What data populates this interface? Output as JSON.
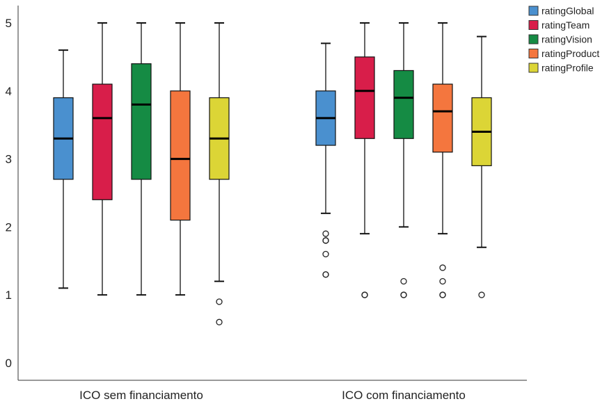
{
  "chart_data": {
    "type": "boxplot",
    "title": "",
    "xlabel": "",
    "ylabel": "",
    "ylim": [
      0,
      5
    ],
    "yticks": [
      0,
      1,
      2,
      3,
      4,
      5
    ],
    "grid": false,
    "legend_position": "top-right",
    "categories": [
      "ICO sem financiamento",
      "ICO com financiamento"
    ],
    "series": [
      {
        "name": "ratingGlobal",
        "color": "#4a90cf",
        "boxes": [
          {
            "whisker_low": 1.1,
            "q1": 2.7,
            "median": 3.3,
            "q3": 3.9,
            "whisker_high": 4.6,
            "outliers": []
          },
          {
            "whisker_low": 2.2,
            "q1": 3.2,
            "median": 3.6,
            "q3": 4.0,
            "whisker_high": 4.7,
            "outliers": [
              1.9,
              1.8,
              1.8,
              1.6,
              1.3,
              1.3
            ]
          }
        ]
      },
      {
        "name": "ratingTeam",
        "color": "#d81e4a",
        "boxes": [
          {
            "whisker_low": 1.0,
            "q1": 2.4,
            "median": 3.6,
            "q3": 4.1,
            "whisker_high": 5.0,
            "outliers": []
          },
          {
            "whisker_low": 1.9,
            "q1": 3.3,
            "median": 4.0,
            "q3": 4.5,
            "whisker_high": 5.0,
            "outliers": [
              1.0,
              1.0
            ]
          }
        ]
      },
      {
        "name": "ratingVision",
        "color": "#158b44",
        "boxes": [
          {
            "whisker_low": 1.0,
            "q1": 2.7,
            "median": 3.8,
            "q3": 4.4,
            "whisker_high": 5.0,
            "outliers": []
          },
          {
            "whisker_low": 2.0,
            "q1": 3.3,
            "median": 3.9,
            "q3": 4.3,
            "whisker_high": 5.0,
            "outliers": [
              1.2,
              1.0,
              1.0
            ]
          }
        ]
      },
      {
        "name": "ratingProduct",
        "color": "#f4763e",
        "boxes": [
          {
            "whisker_low": 1.0,
            "q1": 2.1,
            "median": 3.0,
            "q3": 4.0,
            "whisker_high": 5.0,
            "outliers": []
          },
          {
            "whisker_low": 1.9,
            "q1": 3.1,
            "median": 3.7,
            "q3": 4.1,
            "whisker_high": 5.0,
            "outliers": [
              1.4,
              1.2,
              1.0,
              1.0
            ]
          }
        ]
      },
      {
        "name": "ratingProfile",
        "color": "#dcd536",
        "boxes": [
          {
            "whisker_low": 1.2,
            "q1": 2.7,
            "median": 3.3,
            "q3": 3.9,
            "whisker_high": 5.0,
            "outliers": [
              0.9,
              0.6
            ]
          },
          {
            "whisker_low": 1.7,
            "q1": 2.9,
            "median": 3.4,
            "q3": 3.9,
            "whisker_high": 4.8,
            "outliers": [
              1.0
            ]
          }
        ]
      }
    ]
  }
}
